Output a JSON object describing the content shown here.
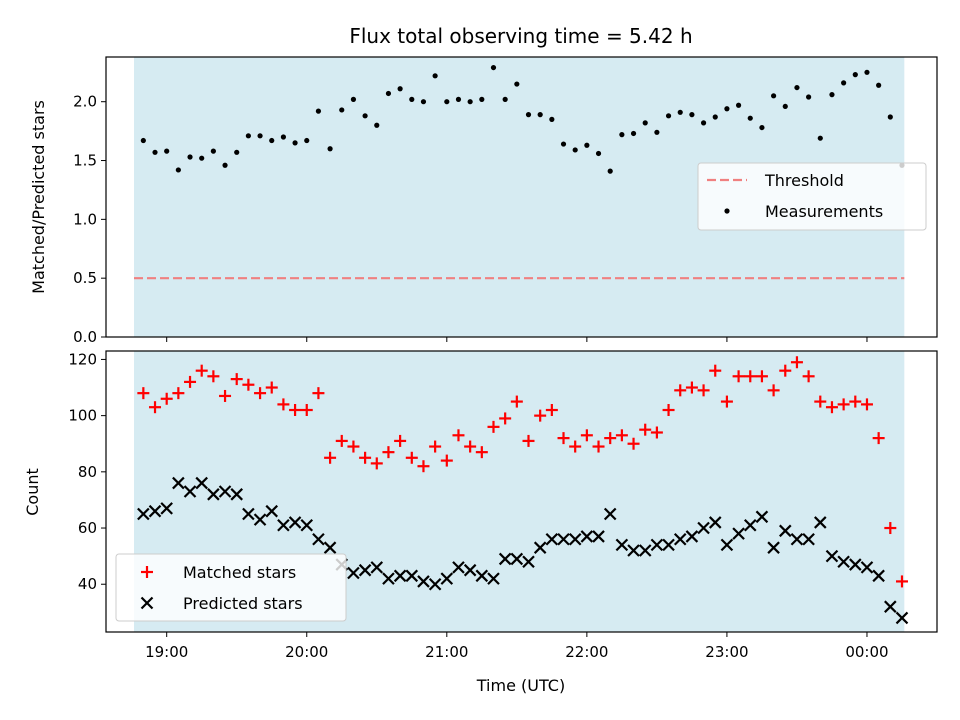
{
  "title": "Flux total observing time = 5.42 h",
  "colors": {
    "band": "#add8e6",
    "threshold": "#f08080",
    "measurement": "#000000",
    "matched": "#ff0000",
    "predicted": "#000000"
  },
  "chart_data": [
    {
      "type": "scatter",
      "name": "top",
      "ylabel": "Matched/Predicted stars",
      "ylim": [
        0,
        2.38
      ],
      "yticks": [
        0.0,
        0.5,
        1.0,
        1.5,
        2.0
      ],
      "ytick_labels": [
        "0.0",
        "0.5",
        "1.0",
        "1.5",
        "2.0"
      ],
      "threshold": {
        "label": "Threshold",
        "value": 0.5
      },
      "legend": {
        "placement": "center-right",
        "entries": [
          "Threshold",
          "Measurements"
        ]
      },
      "series": [
        {
          "name": "Measurements",
          "points": [
            [
              "18:50",
              1.67
            ],
            [
              "18:55",
              1.57
            ],
            [
              "19:00",
              1.58
            ],
            [
              "19:05",
              1.42
            ],
            [
              "19:10",
              1.53
            ],
            [
              "19:15",
              1.52
            ],
            [
              "19:20",
              1.58
            ],
            [
              "19:25",
              1.46
            ],
            [
              "19:30",
              1.57
            ],
            [
              "19:35",
              1.71
            ],
            [
              "19:40",
              1.71
            ],
            [
              "19:45",
              1.67
            ],
            [
              "19:50",
              1.7
            ],
            [
              "19:55",
              1.65
            ],
            [
              "20:00",
              1.67
            ],
            [
              "20:05",
              1.92
            ],
            [
              "20:10",
              1.6
            ],
            [
              "20:15",
              1.93
            ],
            [
              "20:20",
              2.02
            ],
            [
              "20:25",
              1.88
            ],
            [
              "20:30",
              1.8
            ],
            [
              "20:35",
              2.07
            ],
            [
              "20:40",
              2.11
            ],
            [
              "20:45",
              2.02
            ],
            [
              "20:50",
              2.0
            ],
            [
              "20:55",
              2.22
            ],
            [
              "21:00",
              2.0
            ],
            [
              "21:05",
              2.02
            ],
            [
              "21:10",
              2.0
            ],
            [
              "21:15",
              2.02
            ],
            [
              "21:20",
              2.29
            ],
            [
              "21:25",
              2.02
            ],
            [
              "21:30",
              2.15
            ],
            [
              "21:35",
              1.89
            ],
            [
              "21:40",
              1.89
            ],
            [
              "21:45",
              1.85
            ],
            [
              "21:50",
              1.64
            ],
            [
              "21:55",
              1.59
            ],
            [
              "22:00",
              1.63
            ],
            [
              "22:05",
              1.56
            ],
            [
              "22:10",
              1.41
            ],
            [
              "22:15",
              1.72
            ],
            [
              "22:20",
              1.73
            ],
            [
              "22:25",
              1.82
            ],
            [
              "22:30",
              1.74
            ],
            [
              "22:35",
              1.88
            ],
            [
              "22:40",
              1.91
            ],
            [
              "22:45",
              1.89
            ],
            [
              "22:50",
              1.82
            ],
            [
              "22:55",
              1.87
            ],
            [
              "23:00",
              1.94
            ],
            [
              "23:05",
              1.97
            ],
            [
              "23:10",
              1.86
            ],
            [
              "23:15",
              1.78
            ],
            [
              "23:20",
              2.05
            ],
            [
              "23:25",
              1.96
            ],
            [
              "23:30",
              2.12
            ],
            [
              "23:35",
              2.04
            ],
            [
              "23:40",
              1.69
            ],
            [
              "23:45",
              2.06
            ],
            [
              "23:50",
              2.16
            ],
            [
              "23:55",
              2.23
            ],
            [
              "00:00",
              2.25
            ],
            [
              "00:05",
              2.14
            ],
            [
              "00:10",
              1.87
            ],
            [
              "00:15",
              1.46
            ]
          ]
        }
      ]
    },
    {
      "type": "scatter",
      "name": "bottom",
      "xlabel": "Time (UTC)",
      "ylabel": "Count",
      "ylim": [
        23,
        123
      ],
      "yticks": [
        40,
        60,
        80,
        100,
        120
      ],
      "ytick_labels": [
        "40",
        "60",
        "80",
        "100",
        "120"
      ],
      "xlim": [
        "18:34",
        "00:30"
      ],
      "xticks": [
        "19:00",
        "20:00",
        "21:00",
        "22:00",
        "23:00",
        "00:00"
      ],
      "xtick_labels": [
        "19:00",
        "20:00",
        "21:00",
        "22:00",
        "23:00",
        "00:00"
      ],
      "observing_window": [
        "18:46",
        "00:16"
      ],
      "legend": {
        "placement": "lower-left",
        "entries": [
          "Matched stars",
          "Predicted stars"
        ]
      },
      "series": [
        {
          "name": "Matched stars",
          "marker": "plus",
          "points": [
            [
              "18:50",
              108
            ],
            [
              "18:55",
              103
            ],
            [
              "19:00",
              106
            ],
            [
              "19:05",
              108
            ],
            [
              "19:10",
              112
            ],
            [
              "19:15",
              116
            ],
            [
              "19:20",
              114
            ],
            [
              "19:25",
              107
            ],
            [
              "19:30",
              113
            ],
            [
              "19:35",
              111
            ],
            [
              "19:40",
              108
            ],
            [
              "19:45",
              110
            ],
            [
              "19:50",
              104
            ],
            [
              "19:55",
              102
            ],
            [
              "20:00",
              102
            ],
            [
              "20:05",
              108
            ],
            [
              "20:10",
              85
            ],
            [
              "20:15",
              91
            ],
            [
              "20:20",
              89
            ],
            [
              "20:25",
              85
            ],
            [
              "20:30",
              83
            ],
            [
              "20:35",
              87
            ],
            [
              "20:40",
              91
            ],
            [
              "20:45",
              85
            ],
            [
              "20:50",
              82
            ],
            [
              "20:55",
              89
            ],
            [
              "21:00",
              84
            ],
            [
              "21:05",
              93
            ],
            [
              "21:10",
              89
            ],
            [
              "21:15",
              87
            ],
            [
              "21:20",
              96
            ],
            [
              "21:25",
              99
            ],
            [
              "21:30",
              105
            ],
            [
              "21:35",
              91
            ],
            [
              "21:40",
              100
            ],
            [
              "21:45",
              102
            ],
            [
              "21:50",
              92
            ],
            [
              "21:55",
              89
            ],
            [
              "22:00",
              93
            ],
            [
              "22:05",
              89
            ],
            [
              "22:10",
              92
            ],
            [
              "22:15",
              93
            ],
            [
              "22:20",
              90
            ],
            [
              "22:25",
              95
            ],
            [
              "22:30",
              94
            ],
            [
              "22:35",
              102
            ],
            [
              "22:40",
              109
            ],
            [
              "22:45",
              110
            ],
            [
              "22:50",
              109
            ],
            [
              "22:55",
              116
            ],
            [
              "23:00",
              105
            ],
            [
              "23:05",
              114
            ],
            [
              "23:10",
              114
            ],
            [
              "23:15",
              114
            ],
            [
              "23:20",
              109
            ],
            [
              "23:25",
              116
            ],
            [
              "23:30",
              119
            ],
            [
              "23:35",
              114
            ],
            [
              "23:40",
              105
            ],
            [
              "23:45",
              103
            ],
            [
              "23:50",
              104
            ],
            [
              "23:55",
              105
            ],
            [
              "00:00",
              104
            ],
            [
              "00:05",
              92
            ],
            [
              "00:10",
              60
            ],
            [
              "00:15",
              41
            ]
          ]
        },
        {
          "name": "Predicted stars",
          "marker": "x",
          "points": [
            [
              "18:50",
              65
            ],
            [
              "18:55",
              66
            ],
            [
              "19:00",
              67
            ],
            [
              "19:05",
              76
            ],
            [
              "19:10",
              73
            ],
            [
              "19:15",
              76
            ],
            [
              "19:20",
              72
            ],
            [
              "19:25",
              73
            ],
            [
              "19:30",
              72
            ],
            [
              "19:35",
              65
            ],
            [
              "19:40",
              63
            ],
            [
              "19:45",
              66
            ],
            [
              "19:50",
              61
            ],
            [
              "19:55",
              62
            ],
            [
              "20:00",
              61
            ],
            [
              "20:05",
              56
            ],
            [
              "20:10",
              53
            ],
            [
              "20:15",
              47
            ],
            [
              "20:20",
              44
            ],
            [
              "20:25",
              45
            ],
            [
              "20:30",
              46
            ],
            [
              "20:35",
              42
            ],
            [
              "20:40",
              43
            ],
            [
              "20:45",
              43
            ],
            [
              "20:50",
              41
            ],
            [
              "20:55",
              40
            ],
            [
              "21:00",
              42
            ],
            [
              "21:05",
              46
            ],
            [
              "21:10",
              45
            ],
            [
              "21:15",
              43
            ],
            [
              "21:20",
              42
            ],
            [
              "21:25",
              49
            ],
            [
              "21:30",
              49
            ],
            [
              "21:35",
              48
            ],
            [
              "21:40",
              53
            ],
            [
              "21:45",
              56
            ],
            [
              "21:50",
              56
            ],
            [
              "21:55",
              56
            ],
            [
              "22:00",
              57
            ],
            [
              "22:05",
              57
            ],
            [
              "22:10",
              65
            ],
            [
              "22:15",
              54
            ],
            [
              "22:20",
              52
            ],
            [
              "22:25",
              52
            ],
            [
              "22:30",
              54
            ],
            [
              "22:35",
              54
            ],
            [
              "22:40",
              56
            ],
            [
              "22:45",
              57
            ],
            [
              "22:50",
              60
            ],
            [
              "22:55",
              62
            ],
            [
              "23:00",
              54
            ],
            [
              "23:05",
              58
            ],
            [
              "23:10",
              61
            ],
            [
              "23:15",
              64
            ],
            [
              "23:20",
              53
            ],
            [
              "23:25",
              59
            ],
            [
              "23:30",
              56
            ],
            [
              "23:35",
              56
            ],
            [
              "23:40",
              62
            ],
            [
              "23:45",
              50
            ],
            [
              "23:50",
              48
            ],
            [
              "23:55",
              47
            ],
            [
              "00:00",
              46
            ],
            [
              "00:05",
              43
            ],
            [
              "00:10",
              32
            ],
            [
              "00:15",
              28
            ]
          ]
        }
      ]
    }
  ]
}
